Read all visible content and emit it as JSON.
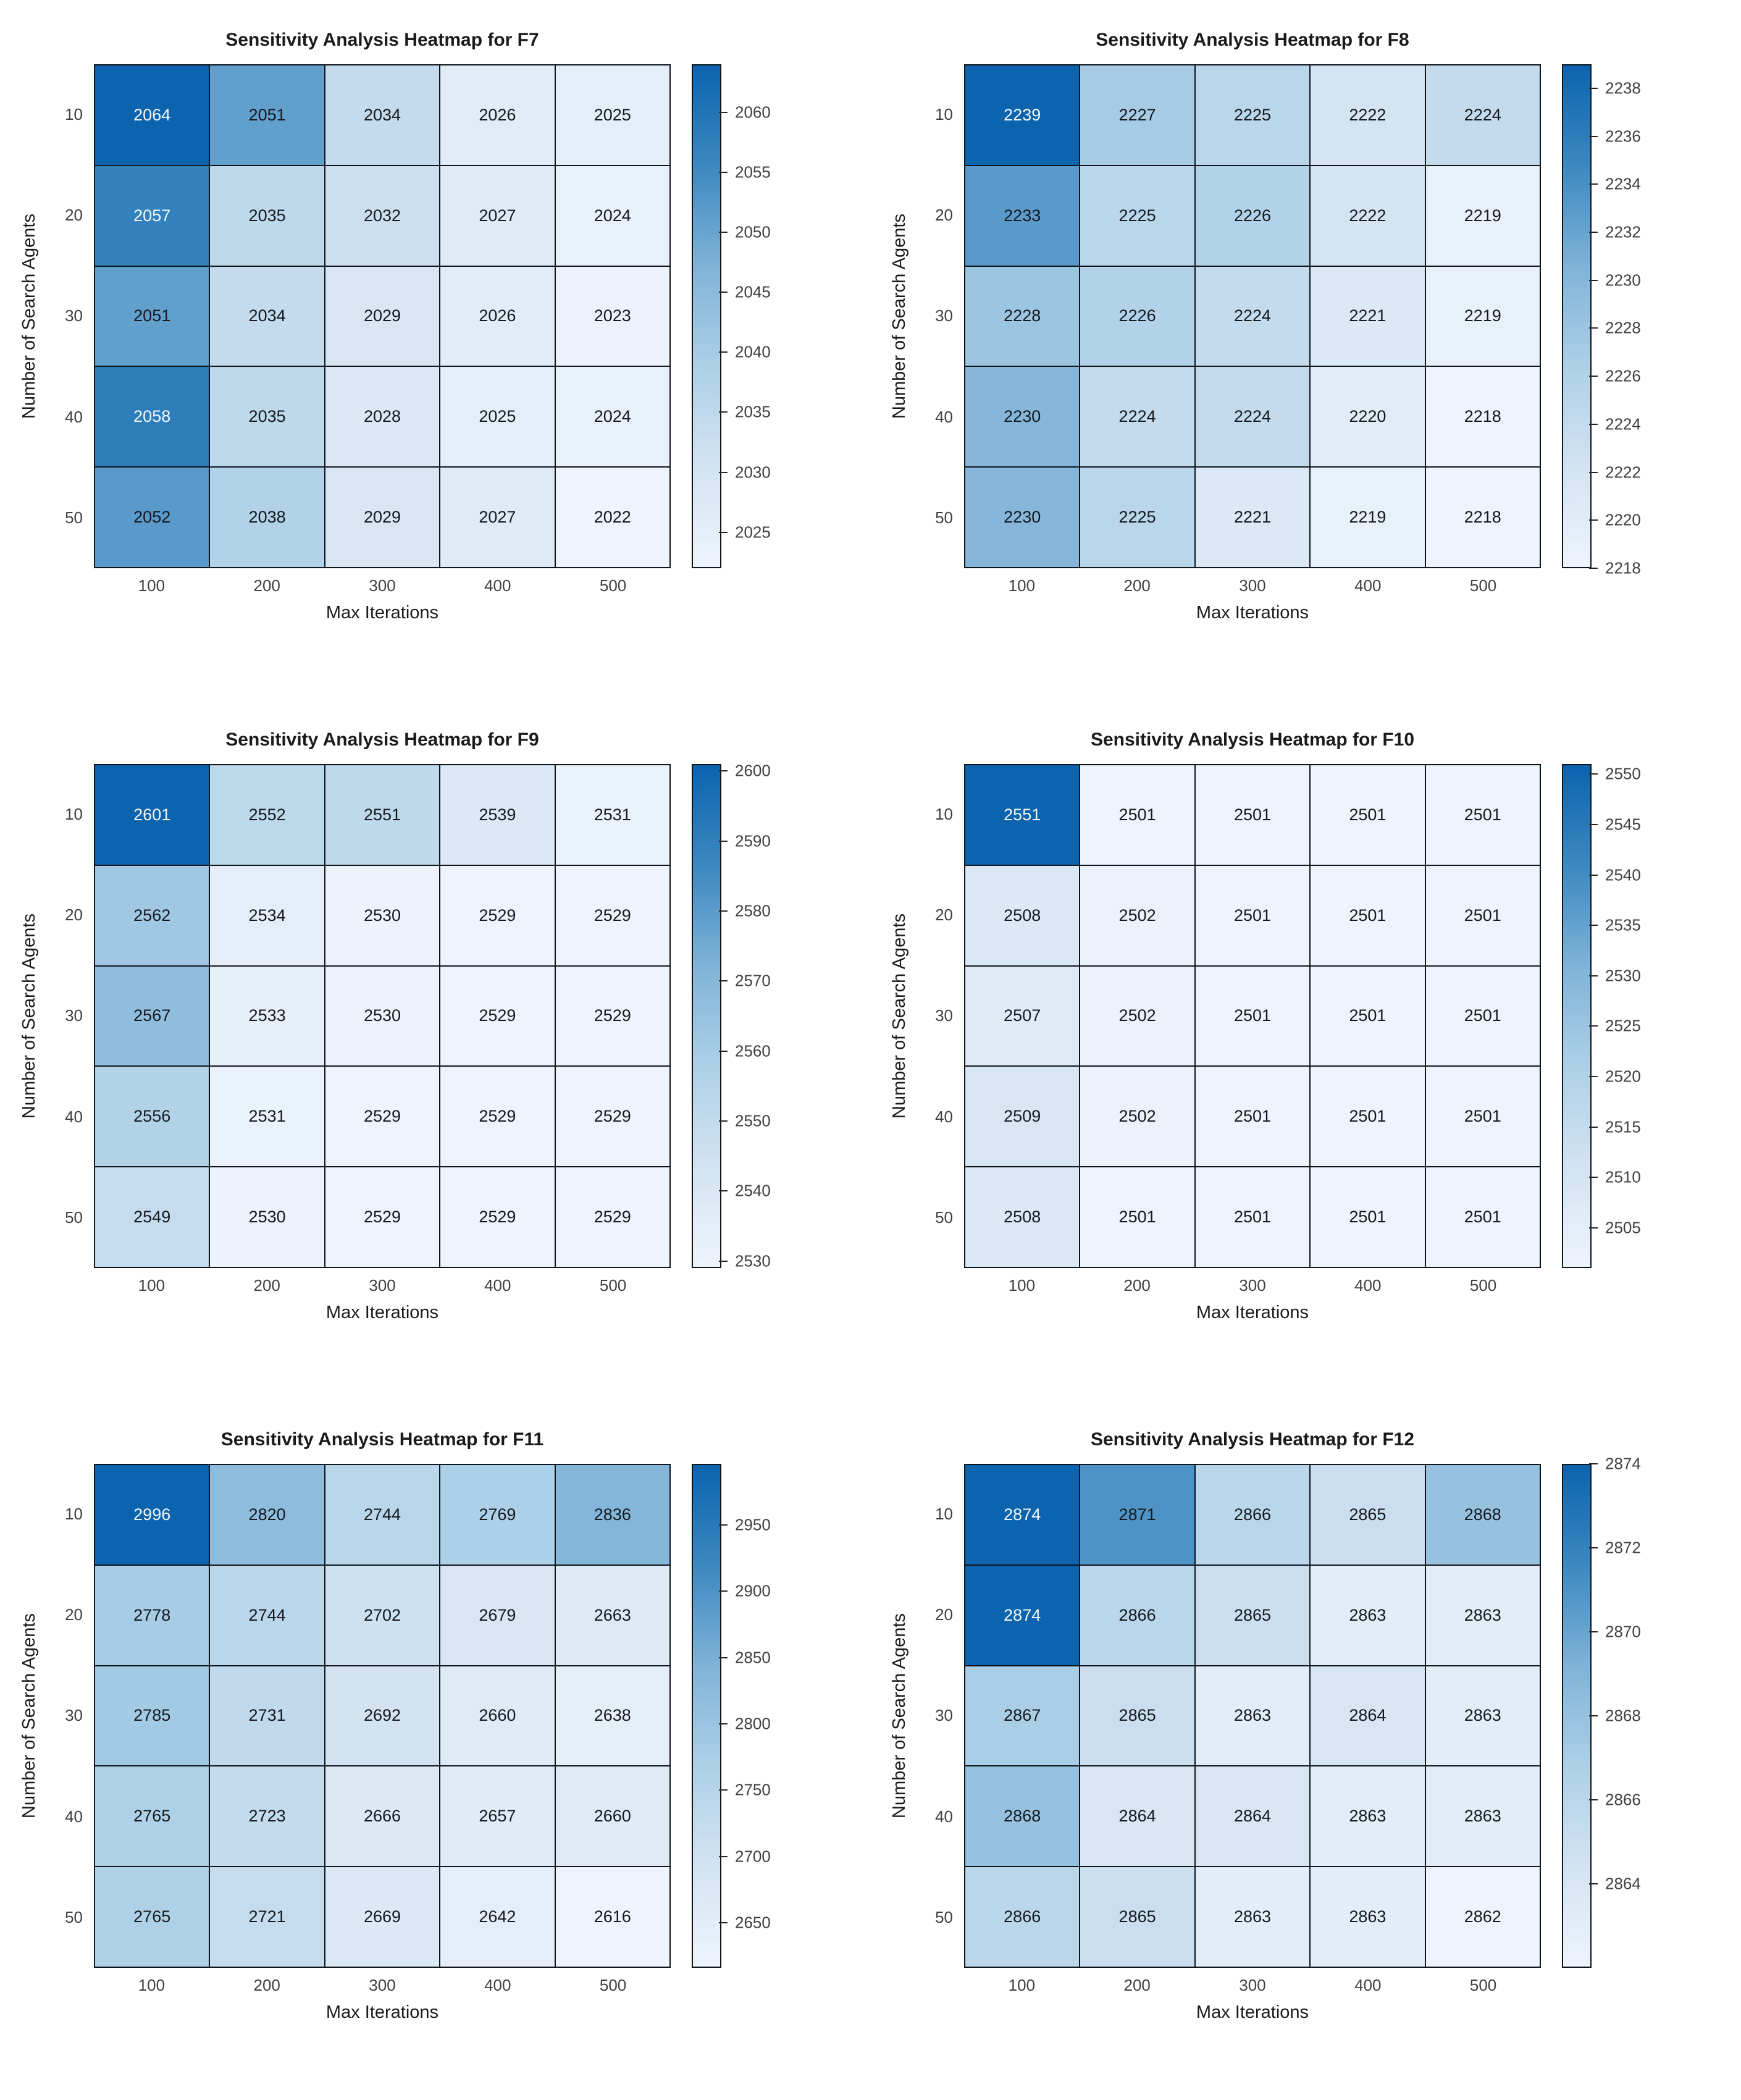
{
  "figure": {
    "background": "#ffffff",
    "title_color": "#1a1a1a",
    "tick_label_color": "#404040",
    "grid_line_color": "#10151c",
    "colormap": [
      "#eef4fb",
      "#d3e3f2",
      "#add0e7",
      "#7fb3d8",
      "#3c88c0",
      "#0c63ae"
    ],
    "text_light": "#f2f7fc",
    "text_dark": "#14191f",
    "white_text_threshold": 0.8
  },
  "chart_data": [
    {
      "type": "heatmap",
      "title": "Sensitivity Analysis Heatmap for F7",
      "xlabel": "Max Iterations",
      "ylabel": "Number of Search Agents",
      "x": [
        100,
        200,
        300,
        400,
        500
      ],
      "y": [
        10,
        20,
        30,
        40,
        50
      ],
      "values": [
        [
          2064,
          2051,
          2034,
          2026,
          2025
        ],
        [
          2057,
          2035,
          2032,
          2027,
          2024
        ],
        [
          2051,
          2034,
          2029,
          2026,
          2023
        ],
        [
          2058,
          2035,
          2028,
          2025,
          2024
        ],
        [
          2052,
          2038,
          2029,
          2027,
          2022
        ]
      ],
      "cmin": 2022,
      "cmax": 2064,
      "colorbar_ticks": [
        2060,
        2055,
        2050,
        2045,
        2040,
        2035,
        2030,
        2025
      ],
      "legend_position": "right-colorbar",
      "grid": true
    },
    {
      "type": "heatmap",
      "title": "Sensitivity Analysis Heatmap for F8",
      "xlabel": "Max Iterations",
      "ylabel": "Number of Search Agents",
      "x": [
        100,
        200,
        300,
        400,
        500
      ],
      "y": [
        10,
        20,
        30,
        40,
        50
      ],
      "values": [
        [
          2239,
          2227,
          2225,
          2222,
          2224
        ],
        [
          2233,
          2225,
          2226,
          2222,
          2219
        ],
        [
          2228,
          2226,
          2224,
          2221,
          2219
        ],
        [
          2230,
          2224,
          2224,
          2220,
          2218
        ],
        [
          2230,
          2225,
          2221,
          2219,
          2218
        ]
      ],
      "cmin": 2218,
      "cmax": 2239,
      "colorbar_ticks": [
        2238,
        2236,
        2234,
        2232,
        2230,
        2228,
        2226,
        2224,
        2222,
        2220,
        2218
      ],
      "legend_position": "right-colorbar",
      "grid": true
    },
    {
      "type": "heatmap",
      "title": "Sensitivity Analysis Heatmap for F9",
      "xlabel": "Max Iterations",
      "ylabel": "Number of Search Agents",
      "x": [
        100,
        200,
        300,
        400,
        500
      ],
      "y": [
        10,
        20,
        30,
        40,
        50
      ],
      "values": [
        [
          2601,
          2552,
          2551,
          2539,
          2531
        ],
        [
          2562,
          2534,
          2530,
          2529,
          2529
        ],
        [
          2567,
          2533,
          2530,
          2529,
          2529
        ],
        [
          2556,
          2531,
          2529,
          2529,
          2529
        ],
        [
          2549,
          2530,
          2529,
          2529,
          2529
        ]
      ],
      "cmin": 2529,
      "cmax": 2601,
      "colorbar_ticks": [
        2600,
        2590,
        2580,
        2570,
        2560,
        2550,
        2540,
        2530
      ],
      "legend_position": "right-colorbar",
      "grid": true
    },
    {
      "type": "heatmap",
      "title": "Sensitivity Analysis Heatmap for F10",
      "xlabel": "Max Iterations",
      "ylabel": "Number of Search Agents",
      "x": [
        100,
        200,
        300,
        400,
        500
      ],
      "y": [
        10,
        20,
        30,
        40,
        50
      ],
      "values": [
        [
          2551,
          2501,
          2501,
          2501,
          2501
        ],
        [
          2508,
          2502,
          2501,
          2501,
          2501
        ],
        [
          2507,
          2502,
          2501,
          2501,
          2501
        ],
        [
          2509,
          2502,
          2501,
          2501,
          2501
        ],
        [
          2508,
          2501,
          2501,
          2501,
          2501
        ]
      ],
      "cmin": 2501,
      "cmax": 2551,
      "colorbar_ticks": [
        2550,
        2545,
        2540,
        2535,
        2530,
        2525,
        2520,
        2515,
        2510,
        2505
      ],
      "legend_position": "right-colorbar",
      "grid": true
    },
    {
      "type": "heatmap",
      "title": "Sensitivity Analysis Heatmap for F11",
      "xlabel": "Max Iterations",
      "ylabel": "Number of Search Agents",
      "x": [
        100,
        200,
        300,
        400,
        500
      ],
      "y": [
        10,
        20,
        30,
        40,
        50
      ],
      "values": [
        [
          2996,
          2820,
          2744,
          2769,
          2836
        ],
        [
          2778,
          2744,
          2702,
          2679,
          2663
        ],
        [
          2785,
          2731,
          2692,
          2660,
          2638
        ],
        [
          2765,
          2723,
          2666,
          2657,
          2660
        ],
        [
          2765,
          2721,
          2669,
          2642,
          2616
        ]
      ],
      "cmin": 2616,
      "cmax": 2996,
      "colorbar_ticks": [
        2950,
        2900,
        2850,
        2800,
        2750,
        2700,
        2650
      ],
      "legend_position": "right-colorbar",
      "grid": true
    },
    {
      "type": "heatmap",
      "title": "Sensitivity Analysis Heatmap for F12",
      "xlabel": "Max Iterations",
      "ylabel": "Number of Search Agents",
      "x": [
        100,
        200,
        300,
        400,
        500
      ],
      "y": [
        10,
        20,
        30,
        40,
        50
      ],
      "values": [
        [
          2874,
          2871,
          2866,
          2865,
          2868
        ],
        [
          2874,
          2866,
          2865,
          2863,
          2863
        ],
        [
          2867,
          2865,
          2863,
          2864,
          2863
        ],
        [
          2868,
          2864,
          2864,
          2863,
          2863
        ],
        [
          2866,
          2865,
          2863,
          2863,
          2862
        ]
      ],
      "cmin": 2862,
      "cmax": 2874,
      "colorbar_ticks": [
        2874,
        2872,
        2870,
        2868,
        2866,
        2864
      ],
      "legend_position": "right-colorbar",
      "grid": true
    }
  ]
}
